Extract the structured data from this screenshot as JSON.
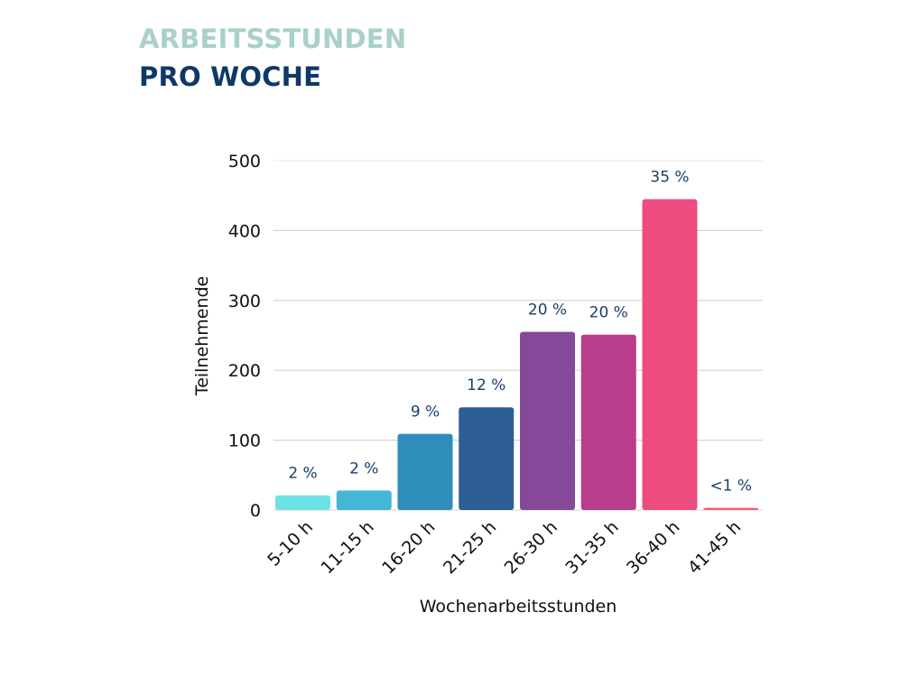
{
  "title_line1": "ARBEITSSTUNDEN",
  "title_line2": "PRO WOCHE",
  "chart_data": {
    "type": "bar",
    "title": "Arbeitsstunden pro Woche",
    "xlabel": "Wochenarbeitsstunden",
    "ylabel": "Teilnehmende",
    "ylim": [
      0,
      500
    ],
    "yticks": [
      0,
      100,
      200,
      300,
      400,
      500
    ],
    "grid": true,
    "categories": [
      "5-10 h",
      "11-15 h",
      "16-20 h",
      "21-25 h",
      "26-30 h",
      "31-35 h",
      "36-40 h",
      "41-45 h"
    ],
    "values": [
      21,
      28,
      109,
      147,
      255,
      251,
      445,
      3
    ],
    "data_labels": [
      "2 %",
      "2 %",
      "9 %",
      "12 %",
      "20 %",
      "20 %",
      "35 %",
      "<1 %"
    ],
    "colors": [
      "#6ce4e5",
      "#43b7d5",
      "#2e8dbb",
      "#2d5f96",
      "#864899",
      "#b83d8b",
      "#ec4c7e",
      "#ef6068"
    ]
  }
}
